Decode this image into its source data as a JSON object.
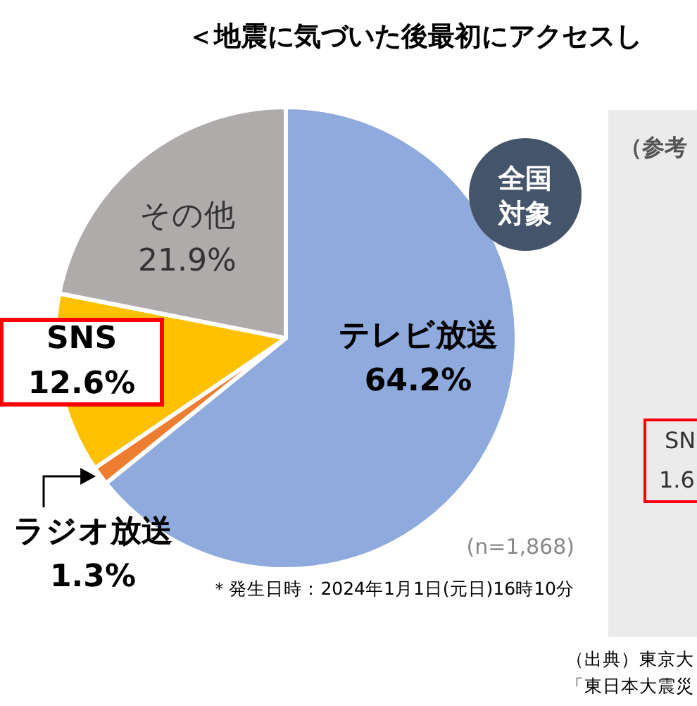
{
  "chart_data": {
    "type": "pie",
    "title": "＜地震に気づいた後最初にアクセスし",
    "categories": [
      "テレビ放送",
      "ラジオ放送",
      "SNS",
      "その他"
    ],
    "values": [
      64.2,
      1.3,
      12.6,
      21.9
    ],
    "value_labels": [
      "64.2%",
      "1.3%",
      "12.6%",
      "21.9%"
    ],
    "colors": [
      "#8faadc",
      "#ed7d31",
      "#ffc000",
      "#afabab"
    ],
    "annotations": [
      "全国対象",
      "(n=1,868)",
      "＊発生日時：2024年1月1日(元日)16時10分",
      "（参考",
      "SN",
      "1.6",
      "（出典）東京大",
      "「東日本大震災"
    ]
  }
}
